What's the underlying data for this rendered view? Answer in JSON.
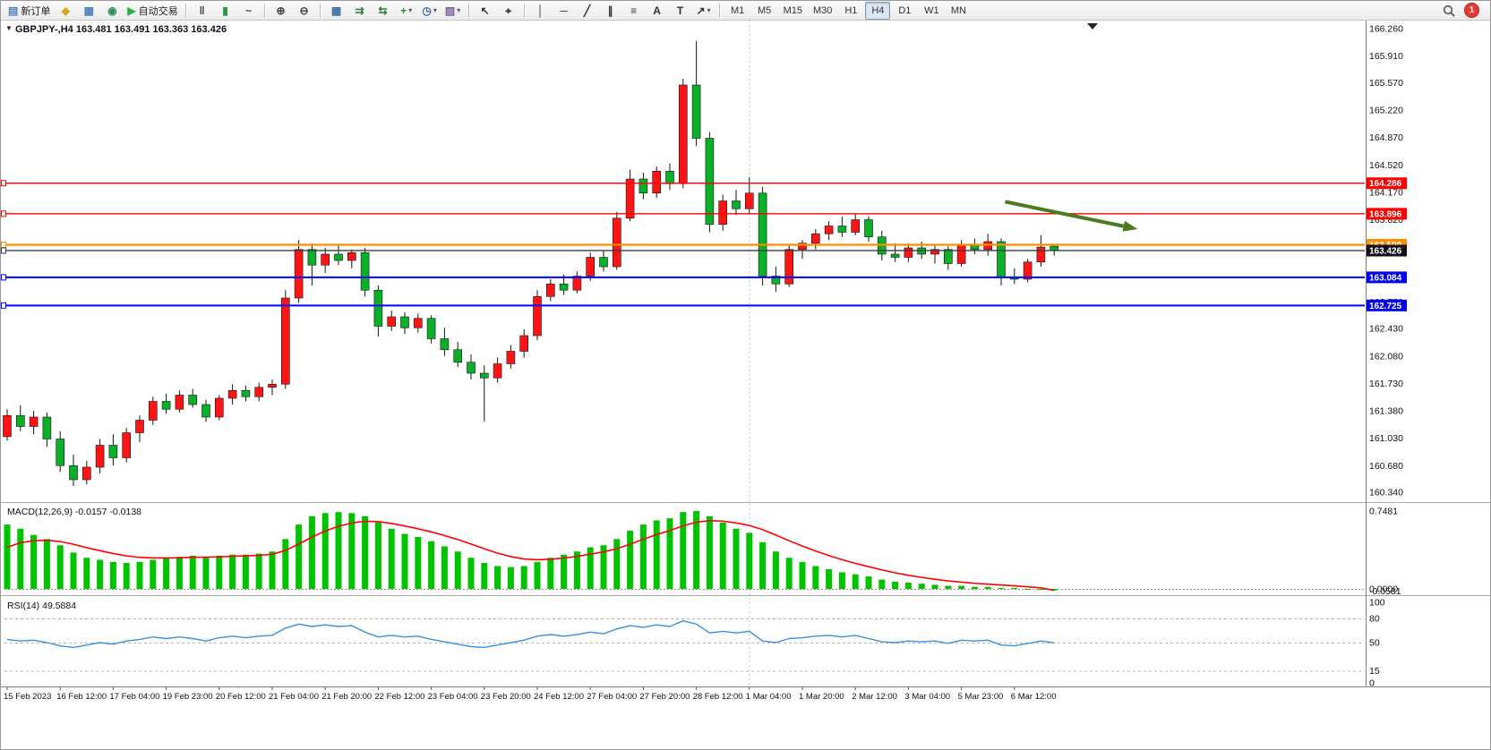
{
  "toolbar": {
    "notification_count": "1",
    "timeframes": [
      "M1",
      "M5",
      "M15",
      "M30",
      "H1",
      "H4",
      "D1",
      "W1",
      "MN"
    ],
    "active_timeframe": "H4",
    "icon_buttons": [
      {
        "name": "new-order-button",
        "glyph": "▤",
        "color": "#4f81bd",
        "label": "新订单"
      },
      {
        "name": "metaeditor-button",
        "glyph": "◆",
        "color": "#d9a521"
      },
      {
        "name": "market-watch-button",
        "glyph": "▦",
        "color": "#4f81bd"
      },
      {
        "name": "navigator-button",
        "glyph": "◉",
        "color": "#2e8b57"
      },
      {
        "name": "auto-trading-button",
        "glyph": "▶",
        "color": "#2eae4f",
        "label": "自动交易"
      },
      {
        "sep": true
      },
      {
        "name": "bar-chart-button",
        "glyph": "‖",
        "color": "#444444"
      },
      {
        "name": "candlestick-chart-button",
        "glyph": "▮",
        "color": "#2a9d3a"
      },
      {
        "name": "line-chart-button",
        "glyph": "~",
        "color": "#444444"
      },
      {
        "sep": true
      },
      {
        "name": "zoom-in-button",
        "glyph": "⊕",
        "color": "#444444"
      },
      {
        "name": "zoom-out-button",
        "glyph": "⊖",
        "color": "#444444"
      },
      {
        "sep": true
      },
      {
        "name": "tile-windows-button",
        "glyph": "▦",
        "color": "#3a6ea5"
      },
      {
        "name": "auto-scroll-button",
        "glyph": "⇉",
        "color": "#2a7d3a"
      },
      {
        "name": "chart-shift-button",
        "glyph": "⇆",
        "color": "#2a7d3a"
      },
      {
        "name": "indicators-button",
        "glyph": "+",
        "color": "#1f8f2f",
        "dropdown": true
      },
      {
        "name": "periods-button",
        "glyph": "◷",
        "color": "#3a6ea5",
        "dropdown": true
      },
      {
        "name": "templates-button",
        "glyph": "▨",
        "color": "#7a5c9e",
        "dropdown": true
      },
      {
        "sep": true
      },
      {
        "name": "cursor-button",
        "glyph": "↖",
        "color": "#333333"
      },
      {
        "name": "crosshair-button",
        "glyph": "⌖",
        "color": "#333333"
      },
      {
        "sep": true
      },
      {
        "name": "vertical-line-button",
        "glyph": "│",
        "color": "#333333"
      },
      {
        "name": "horizontal-line-button",
        "glyph": "─",
        "color": "#333333"
      },
      {
        "name": "trendline-button",
        "glyph": "╱",
        "color": "#333333"
      },
      {
        "name": "equidistant-channel-button",
        "glyph": "∥",
        "color": "#333333"
      },
      {
        "name": "fibonacci-button",
        "glyph": "≡",
        "color": "#333333"
      },
      {
        "name": "text-button",
        "glyph": "A",
        "color": "#333333"
      },
      {
        "name": "text-label-button",
        "glyph": "T",
        "color": "#333333"
      },
      {
        "name": "arrows-button",
        "glyph": "↗",
        "color": "#333333",
        "dropdown": true
      },
      {
        "sep": true
      }
    ]
  },
  "chart_header": {
    "collapse_icon": "▼",
    "symbol_title": "GBPJPY-,H4",
    "ohlc": "163.481 163.491 163.363 163.426"
  },
  "indicators": {
    "macd_name": "MACD(12,26,9)",
    "macd_values": "-0.0157 -0.0138",
    "rsi_name": "RSI(14)",
    "rsi_value": "49.5884"
  },
  "colors": {
    "up_candle": "#fe1414",
    "down_candle": "#0ab028",
    "wick": "#151515",
    "macd_histogram": "#00c400",
    "macd_signal": "#ff0000",
    "rsi_line": "#3692e0",
    "background": "#ffffff",
    "axis_text": "#111111",
    "arrow": "#4c7a1f"
  },
  "chart_data": [
    {
      "type": "candlestick",
      "title": "GBPJPY-,H4",
      "current_bar_ohlc": [
        163.481,
        163.491,
        163.363,
        163.426
      ],
      "color_convention": "red-up-green-down",
      "y_ticks": [
        "166.260",
        "165.910",
        "165.570",
        "165.220",
        "164.870",
        "164.520",
        "164.170",
        "163.820",
        "162.770",
        "162.430",
        "162.080",
        "161.730",
        "161.380",
        "161.030",
        "160.680",
        "160.340"
      ],
      "x_labels": [
        "15 Feb 2023",
        "16 Feb 12:00",
        "17 Feb 04:00",
        "19 Feb 23:00",
        "20 Feb 12:00",
        "21 Feb 04:00",
        "21 Feb 20:00",
        "22 Feb 12:00",
        "23 Feb 04:00",
        "23 Feb 20:00",
        "24 Feb 12:00",
        "27 Feb 04:00",
        "27 Feb 20:00",
        "28 Feb 12:00",
        "1 Mar 04:00",
        "1 Mar 20:00",
        "2 Mar 12:00",
        "3 Mar 04:00",
        "5 Mar 23:00",
        "6 Mar 12:00"
      ],
      "label_every": 4,
      "month_separator_bar": 56,
      "candles": [
        [
          161.05,
          161.4,
          161.0,
          161.32
        ],
        [
          161.32,
          161.45,
          161.12,
          161.18
        ],
        [
          161.18,
          161.38,
          161.08,
          161.3
        ],
        [
          161.3,
          161.36,
          160.92,
          161.02
        ],
        [
          161.02,
          161.12,
          160.6,
          160.68
        ],
        [
          160.68,
          160.82,
          160.42,
          160.5
        ],
        [
          160.5,
          160.74,
          160.44,
          160.66
        ],
        [
          160.66,
          161.02,
          160.58,
          160.94
        ],
        [
          160.94,
          161.08,
          160.68,
          160.78
        ],
        [
          160.78,
          161.16,
          160.72,
          161.1
        ],
        [
          161.1,
          161.32,
          160.98,
          161.26
        ],
        [
          161.26,
          161.56,
          161.2,
          161.5
        ],
        [
          161.5,
          161.6,
          161.34,
          161.4
        ],
        [
          161.4,
          161.64,
          161.36,
          161.58
        ],
        [
          161.58,
          161.66,
          161.42,
          161.46
        ],
        [
          161.46,
          161.52,
          161.24,
          161.3
        ],
        [
          161.3,
          161.58,
          161.26,
          161.54
        ],
        [
          161.54,
          161.72,
          161.46,
          161.64
        ],
        [
          161.64,
          161.7,
          161.5,
          161.56
        ],
        [
          161.56,
          161.74,
          161.5,
          161.68
        ],
        [
          161.68,
          161.78,
          161.58,
          161.72
        ],
        [
          161.72,
          162.92,
          161.66,
          162.82
        ],
        [
          162.82,
          163.56,
          162.76,
          163.44
        ],
        [
          163.44,
          163.52,
          162.98,
          163.24
        ],
        [
          163.24,
          163.46,
          163.14,
          163.38
        ],
        [
          163.38,
          163.5,
          163.24,
          163.3
        ],
        [
          163.3,
          163.44,
          163.2,
          163.4
        ],
        [
          163.4,
          163.46,
          162.84,
          162.92
        ],
        [
          162.92,
          162.98,
          162.33,
          162.46
        ],
        [
          162.46,
          162.66,
          162.4,
          162.58
        ],
        [
          162.58,
          162.64,
          162.36,
          162.44
        ],
        [
          162.44,
          162.62,
          162.38,
          162.56
        ],
        [
          162.56,
          162.6,
          162.24,
          162.3
        ],
        [
          162.3,
          162.44,
          162.08,
          162.16
        ],
        [
          162.16,
          162.26,
          161.94,
          162.0
        ],
        [
          162.0,
          162.1,
          161.78,
          161.86
        ],
        [
          161.86,
          161.96,
          161.24,
          161.8
        ],
        [
          161.8,
          162.06,
          161.74,
          161.98
        ],
        [
          161.98,
          162.22,
          161.92,
          162.14
        ],
        [
          162.14,
          162.42,
          162.06,
          162.34
        ],
        [
          162.34,
          162.92,
          162.28,
          162.84
        ],
        [
          162.84,
          163.06,
          162.78,
          163.0
        ],
        [
          163.0,
          163.12,
          162.86,
          162.92
        ],
        [
          162.92,
          163.16,
          162.88,
          163.1
        ],
        [
          163.1,
          163.4,
          163.04,
          163.34
        ],
        [
          163.34,
          163.42,
          163.16,
          163.22
        ],
        [
          163.22,
          163.92,
          163.18,
          163.84
        ],
        [
          163.84,
          164.46,
          163.8,
          164.34
        ],
        [
          164.34,
          164.42,
          164.08,
          164.16
        ],
        [
          164.16,
          164.5,
          164.1,
          164.44
        ],
        [
          164.44,
          164.54,
          164.2,
          164.28
        ],
        [
          164.28,
          165.62,
          164.22,
          165.54
        ],
        [
          165.54,
          166.1,
          164.76,
          164.86
        ],
        [
          164.86,
          164.94,
          163.66,
          163.76
        ],
        [
          163.76,
          164.14,
          163.68,
          164.06
        ],
        [
          164.06,
          164.2,
          163.88,
          163.96
        ],
        [
          163.96,
          164.36,
          163.9,
          164.16
        ],
        [
          164.16,
          164.24,
          162.98,
          163.1
        ],
        [
          163.1,
          163.22,
          162.9,
          163.0
        ],
        [
          163.0,
          163.5,
          162.96,
          163.44
        ],
        [
          163.44,
          163.56,
          163.32,
          163.52
        ],
        [
          163.52,
          163.7,
          163.44,
          163.64
        ],
        [
          163.64,
          163.8,
          163.56,
          163.74
        ],
        [
          163.74,
          163.86,
          163.6,
          163.66
        ],
        [
          163.66,
          163.9,
          163.62,
          163.82
        ],
        [
          163.82,
          163.86,
          163.54,
          163.6
        ],
        [
          163.6,
          163.68,
          163.3,
          163.38
        ],
        [
          163.38,
          163.52,
          163.28,
          163.34
        ],
        [
          163.34,
          163.52,
          163.28,
          163.46
        ],
        [
          163.46,
          163.54,
          163.32,
          163.38
        ],
        [
          163.38,
          163.5,
          163.26,
          163.44
        ],
        [
          163.44,
          163.48,
          163.18,
          163.26
        ],
        [
          163.26,
          163.56,
          163.22,
          163.5
        ],
        [
          163.5,
          163.58,
          163.38,
          163.44
        ],
        [
          163.44,
          163.64,
          163.36,
          163.54
        ],
        [
          163.54,
          163.58,
          162.98,
          163.08
        ],
        [
          163.08,
          163.2,
          163.0,
          163.06
        ],
        [
          163.06,
          163.32,
          163.02,
          163.28
        ],
        [
          163.28,
          163.62,
          163.22,
          163.47
        ],
        [
          163.481,
          163.491,
          163.363,
          163.426
        ]
      ],
      "hlines": [
        {
          "price": 164.286,
          "color": "#fe0000",
          "label": "164.286",
          "label_bg": "#fe0000",
          "width": 1.4
        },
        {
          "price": 163.896,
          "color": "#fe0000",
          "label": "163.896",
          "label_bg": "#fe0000",
          "width": 1.4
        },
        {
          "price": 163.5,
          "color": "#ff8d00",
          "label": "163.500",
          "label_bg": "#ff8d00",
          "width": 2.2
        },
        {
          "price": 163.426,
          "color": "#3a3a3a",
          "label": "163.426",
          "label_bg": "#101018",
          "width": 1.4,
          "role": "current_price"
        },
        {
          "price": 163.084,
          "color": "#0000ff",
          "label": "163.084",
          "label_bg": "#0000ee",
          "width": 2
        },
        {
          "price": 162.725,
          "color": "#0000ff",
          "label": "162.725",
          "label_bg": "#0000ee",
          "width": 2
        }
      ],
      "annotations": [
        {
          "type": "arrow",
          "from_bar": 75.3,
          "from_price": 164.05,
          "to_bar": 85.3,
          "to_price": 163.7,
          "color": "#4c7a1f"
        }
      ]
    },
    {
      "type": "macd_histogram",
      "name": "MACD(12,26,9)",
      "current_macd": -0.0157,
      "current_signal": -0.0138,
      "axis_labels": [
        {
          "value": 0.7481,
          "text": "0.7481"
        },
        {
          "value": 0,
          "text": "0.0000"
        },
        {
          "value": -0.0581,
          "text": "-0.0581"
        }
      ],
      "histogram": [
        0.62,
        0.58,
        0.52,
        0.48,
        0.42,
        0.35,
        0.3,
        0.28,
        0.26,
        0.25,
        0.26,
        0.28,
        0.3,
        0.31,
        0.32,
        0.31,
        0.32,
        0.33,
        0.33,
        0.34,
        0.36,
        0.48,
        0.62,
        0.7,
        0.73,
        0.74,
        0.73,
        0.7,
        0.64,
        0.58,
        0.53,
        0.5,
        0.46,
        0.41,
        0.36,
        0.3,
        0.25,
        0.22,
        0.21,
        0.22,
        0.26,
        0.3,
        0.33,
        0.36,
        0.4,
        0.42,
        0.48,
        0.56,
        0.62,
        0.66,
        0.68,
        0.74,
        0.75,
        0.7,
        0.64,
        0.58,
        0.54,
        0.45,
        0.36,
        0.3,
        0.26,
        0.22,
        0.19,
        0.16,
        0.14,
        0.12,
        0.09,
        0.07,
        0.06,
        0.05,
        0.04,
        0.03,
        0.03,
        0.02,
        0.02,
        0.01,
        0.01,
        0.0,
        -0.01,
        -0.0157
      ],
      "signal": [
        0.4,
        0.445,
        0.464,
        0.468,
        0.456,
        0.43,
        0.397,
        0.368,
        0.341,
        0.318,
        0.304,
        0.298,
        0.298,
        0.299,
        0.304,
        0.306,
        0.309,
        0.314,
        0.318,
        0.324,
        0.333,
        0.37,
        0.432,
        0.499,
        0.557,
        0.603,
        0.635,
        0.651,
        0.648,
        0.631,
        0.606,
        0.579,
        0.549,
        0.514,
        0.476,
        0.432,
        0.387,
        0.345,
        0.311,
        0.288,
        0.281,
        0.286,
        0.297,
        0.313,
        0.335,
        0.356,
        0.387,
        0.43,
        0.478,
        0.523,
        0.562,
        0.607,
        0.643,
        0.657,
        0.653,
        0.635,
        0.611,
        0.571,
        0.518,
        0.464,
        0.413,
        0.365,
        0.321,
        0.281,
        0.246,
        0.214,
        0.183,
        0.155,
        0.131,
        0.111,
        0.093,
        0.077,
        0.065,
        0.054,
        0.046,
        0.037,
        0.03,
        0.02,
        0.01,
        -0.0138
      ]
    },
    {
      "type": "rsi_line",
      "name": "RSI(14)",
      "current": 49.5884,
      "levels": [
        80,
        50,
        15
      ],
      "axis_labels": [
        {
          "value": 100,
          "text": "100"
        },
        {
          "value": 80,
          "text": "80"
        },
        {
          "value": 50,
          "text": "50"
        },
        {
          "value": 15,
          "text": "15"
        },
        {
          "value": 0,
          "text": "0"
        }
      ],
      "values": [
        54,
        52,
        53,
        50,
        46,
        44,
        47,
        50,
        48,
        52,
        54,
        57,
        55,
        57,
        55,
        52,
        56,
        58,
        56,
        58,
        59,
        68,
        73,
        70,
        72,
        70,
        71,
        63,
        57,
        59,
        57,
        58,
        54,
        51,
        48,
        45,
        44,
        47,
        50,
        53,
        58,
        60,
        58,
        60,
        63,
        61,
        67,
        71,
        69,
        72,
        70,
        77,
        73,
        62,
        64,
        62,
        64,
        52,
        50,
        55,
        56,
        58,
        59,
        57,
        59,
        55,
        51,
        50,
        52,
        51,
        52,
        49,
        53,
        52,
        53,
        47,
        46,
        49,
        52,
        49.59
      ]
    }
  ]
}
